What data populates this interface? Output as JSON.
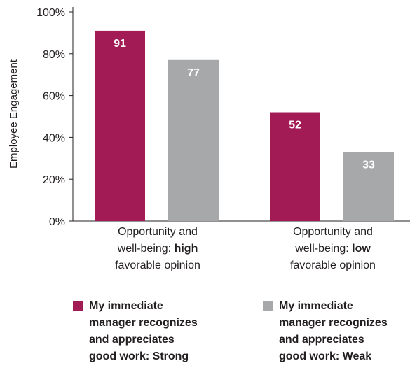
{
  "chart_data": {
    "type": "bar",
    "ylabel": "Employee Engagement",
    "ylim": [
      0,
      100
    ],
    "yticks": [
      "0%",
      "20%",
      "40%",
      "60%",
      "80%",
      "100%"
    ],
    "categories": [
      {
        "pre": "Opportunity and",
        "mid": "well-being: ",
        "bold": "high",
        "post": "favorable opinion"
      },
      {
        "pre": "Opportunity and",
        "mid": "well-being: ",
        "bold": "low",
        "post": "favorable opinion"
      }
    ],
    "series": [
      {
        "name": "My immediate manager recognizes and appreciates good work: Strong",
        "color": "#a21b54",
        "values": [
          91,
          52
        ]
      },
      {
        "name": "My immediate manager recognizes and appreciates good work: Weak",
        "color": "#a7a8aa",
        "values": [
          77,
          33
        ]
      }
    ]
  },
  "legend": [
    {
      "lines": [
        "My immediate",
        "manager recognizes",
        "and appreciates",
        "good work: Strong"
      ]
    },
    {
      "lines": [
        "My immediate",
        "manager recognizes",
        "and appreciates",
        "good work: Weak"
      ]
    }
  ]
}
